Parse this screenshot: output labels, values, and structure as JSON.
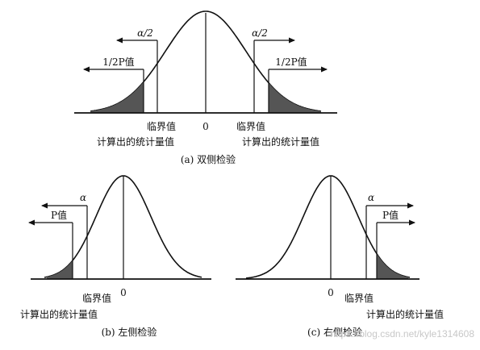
{
  "panels": [
    {
      "caption": "(a)  双侧检验",
      "alpha_left": "α/2",
      "alpha_right": "α/2",
      "p_left": "1/2P值",
      "p_right": "1/2P值",
      "zero": "0",
      "critical_left": "临界值",
      "critical_right": "临界值",
      "stat_left": "计算出的统计量值",
      "stat_right": "计算出的统计量值"
    },
    {
      "caption": "(b)  左侧检验",
      "alpha": "α",
      "p": "P值",
      "zero": "0",
      "critical": "临界值",
      "stat": "计算出的统计量值"
    },
    {
      "caption": "(c)  右侧检验",
      "alpha": "α",
      "p": "P值",
      "zero": "0",
      "critical": "临界值",
      "stat": "计算出的统计量值"
    }
  ],
  "watermark": "https://blog.csdn.net/kyle1314608"
}
